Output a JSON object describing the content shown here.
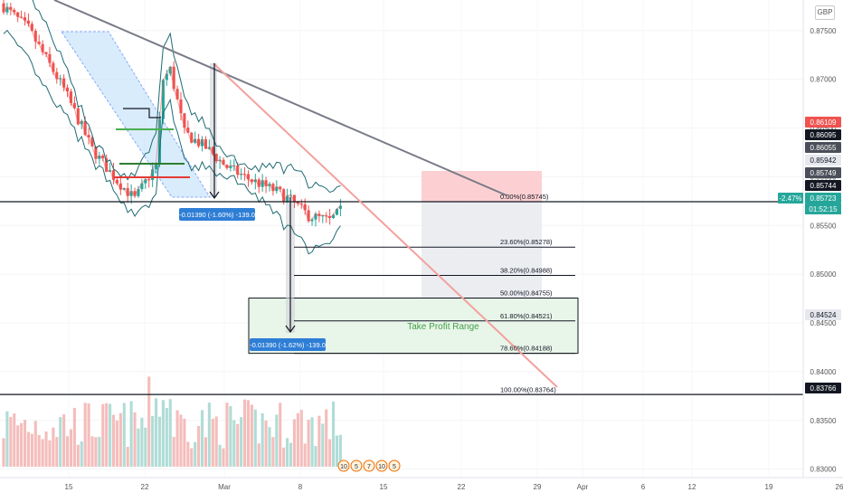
{
  "currency_badge": "GBP",
  "chart_data": {
    "type": "candlestick",
    "instrument_currency": "GBP",
    "x_ticks": [
      "15",
      "22",
      "Mar",
      "8",
      "15",
      "22",
      "29",
      "Apr",
      "6",
      "12",
      "19",
      "26"
    ],
    "y_ticks": [
      "0.87500",
      "0.87000",
      "0.86500",
      "0.86000",
      "0.85500",
      "0.85000",
      "0.84500",
      "0.84000",
      "0.83500",
      "0.83000"
    ],
    "ylim": [
      0.8295,
      0.8774
    ],
    "price_tags": [
      {
        "label": "0.86109",
        "value": 0.86109,
        "style": "red"
      },
      {
        "label": "0.86095",
        "value": 0.86095,
        "style": "dark"
      },
      {
        "label": "0.86055",
        "value": 0.86055,
        "style": "gray"
      },
      {
        "label": "0.85942",
        "value": 0.85942,
        "style": "light"
      },
      {
        "label": "0.85749",
        "value": 0.85749,
        "style": "gray"
      },
      {
        "label": "0.85744",
        "value": 0.85744,
        "style": "dark"
      },
      {
        "label": "0.85723",
        "value": 0.85723,
        "style": "green"
      },
      {
        "label": "0.84524",
        "value": 0.84524,
        "style": "light"
      },
      {
        "label": "0.83766",
        "value": 0.83766,
        "style": "dark"
      }
    ],
    "countdown": "01:52:15",
    "change_badge": "-2.47%",
    "fib_levels": [
      {
        "label": "0.00%(0.85745)",
        "value": 0.85745
      },
      {
        "label": "23.60%(0.85278)",
        "value": 0.85278
      },
      {
        "label": "38.20%(0.84988)",
        "value": 0.84988
      },
      {
        "label": "50.00%(0.84755)",
        "value": 0.84755
      },
      {
        "label": "61.80%(0.84521)",
        "value": 0.84521
      },
      {
        "label": "78.60%(0.84188)",
        "value": 0.84188
      },
      {
        "label": "100.00%(0.83764)",
        "value": 0.83764
      }
    ],
    "horizontal_lines": [
      0.85744,
      0.83766
    ],
    "measure_labels": [
      "-0.01390 (-1.60%) -139.0",
      "-0.01390 (-1.62%) -139.0"
    ],
    "take_profit_label": "Take Profit Range",
    "take_profit_range": [
      0.84188,
      0.84755
    ],
    "event_icons": [
      "10",
      "5",
      "7",
      "10",
      "5"
    ],
    "colors": {
      "up": "#26a69a",
      "down": "#ef5350",
      "trendline": "#787b86",
      "channel": "#2962ff",
      "bollinger": "#1f6b73",
      "take_profit_fill": "#e8f5e9",
      "take_profit_text": "#43a047",
      "risk_fill": "#fccbcd",
      "reward_fill": "#e9ebef"
    }
  }
}
